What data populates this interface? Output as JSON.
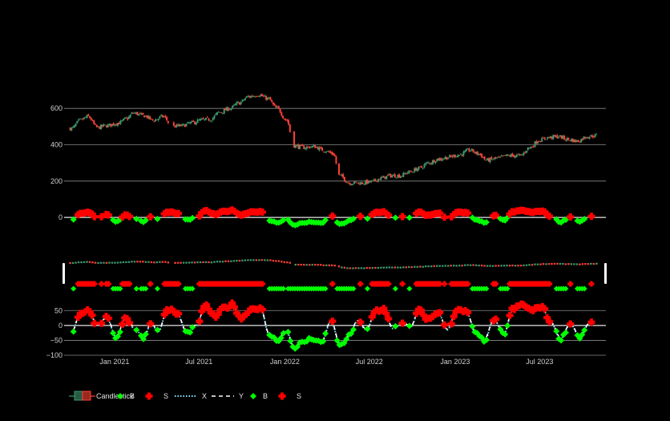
{
  "chart_data": {
    "type": "candlestick",
    "title": "",
    "colors": {
      "background": "#000000",
      "grid": "#8a8a8a",
      "up": "#3d9970",
      "down": "#ff4136",
      "buy_marker": "#00ff00",
      "sell_marker": "#ff0000",
      "x_line": "#7fe8ff",
      "y_line": "#ffffff",
      "tick_text": "#cfcfcf"
    },
    "x_axis": {
      "type": "date",
      "range": [
        "2020-09-15",
        "2023-11-20"
      ],
      "tick_labels": [
        {
          "date": "2021-01-01",
          "label": "Jan 2021"
        },
        {
          "date": "2021-07-01",
          "label": "Jul 2021"
        },
        {
          "date": "2022-01-01",
          "label": "Jan 2022"
        },
        {
          "date": "2022-07-01",
          "label": "Jul 2022"
        },
        {
          "date": "2023-01-01",
          "label": "Jan 2023"
        },
        {
          "date": "2023-07-01",
          "label": "Jul 2023"
        }
      ]
    },
    "price_panel": {
      "y_range": [
        -70,
        720
      ],
      "y_ticks": [
        0,
        200,
        400,
        600
      ],
      "price_series": [
        [
          "2020-10-01",
          490
        ],
        [
          "2020-10-20",
          535
        ],
        [
          "2020-11-05",
          555
        ],
        [
          "2020-11-25",
          495
        ],
        [
          "2020-12-15",
          505
        ],
        [
          "2021-01-10",
          520
        ],
        [
          "2021-01-28",
          545
        ],
        [
          "2021-02-10",
          575
        ],
        [
          "2021-03-05",
          560
        ],
        [
          "2021-03-25",
          535
        ],
        [
          "2021-04-15",
          555
        ],
        [
          "2021-05-05",
          500
        ],
        [
          "2021-05-25",
          505
        ],
        [
          "2021-06-15",
          520
        ],
        [
          "2021-07-05",
          535
        ],
        [
          "2021-07-25",
          540
        ],
        [
          "2021-08-15",
          580
        ],
        [
          "2021-09-05",
          600
        ],
        [
          "2021-09-25",
          630
        ],
        [
          "2021-10-15",
          665
        ],
        [
          "2021-11-05",
          675
        ],
        [
          "2021-11-25",
          655
        ],
        [
          "2021-12-15",
          600
        ],
        [
          "2022-01-05",
          535
        ],
        [
          "2022-01-20",
          395
        ],
        [
          "2022-02-10",
          385
        ],
        [
          "2022-03-05",
          390
        ],
        [
          "2022-03-25",
          370
        ],
        [
          "2022-04-15",
          350
        ],
        [
          "2022-04-28",
          230
        ],
        [
          "2022-05-20",
          190
        ],
        [
          "2022-06-10",
          190
        ],
        [
          "2022-07-05",
          195
        ],
        [
          "2022-07-25",
          215
        ],
        [
          "2022-08-15",
          230
        ],
        [
          "2022-09-05",
          230
        ],
        [
          "2022-09-25",
          250
        ],
        [
          "2022-10-15",
          270
        ],
        [
          "2022-11-05",
          300
        ],
        [
          "2022-11-25",
          320
        ],
        [
          "2022-12-15",
          330
        ],
        [
          "2023-01-10",
          345
        ],
        [
          "2023-02-01",
          370
        ],
        [
          "2023-02-20",
          350
        ],
        [
          "2023-03-10",
          315
        ],
        [
          "2023-04-01",
          325
        ],
        [
          "2023-04-25",
          340
        ],
        [
          "2023-05-20",
          340
        ],
        [
          "2023-06-10",
          385
        ],
        [
          "2023-06-30",
          425
        ],
        [
          "2023-07-20",
          440
        ],
        [
          "2023-08-10",
          445
        ],
        [
          "2023-08-30",
          430
        ],
        [
          "2023-09-20",
          420
        ],
        [
          "2023-10-10",
          445
        ],
        [
          "2023-10-30",
          450
        ]
      ],
      "oscillator_series": [
        [
          "2020-10-01",
          -25
        ],
        [
          "2020-10-20",
          40
        ],
        [
          "2020-11-05",
          55
        ],
        [
          "2020-11-25",
          0
        ],
        [
          "2020-12-15",
          25
        ],
        [
          "2021-01-05",
          -40
        ],
        [
          "2021-01-25",
          25
        ],
        [
          "2021-02-15",
          -15
        ],
        [
          "2021-03-05",
          -40
        ],
        [
          "2021-03-20",
          5
        ],
        [
          "2021-04-05",
          -20
        ],
        [
          "2021-04-25",
          55
        ],
        [
          "2021-05-15",
          40
        ],
        [
          "2021-06-05",
          -25
        ],
        [
          "2021-06-25",
          0
        ],
        [
          "2021-07-15",
          65
        ],
        [
          "2021-08-05",
          30
        ],
        [
          "2021-08-25",
          60
        ],
        [
          "2021-09-10",
          70
        ],
        [
          "2021-09-30",
          25
        ],
        [
          "2021-10-20",
          55
        ],
        [
          "2021-11-10",
          60
        ],
        [
          "2021-11-28",
          -30
        ],
        [
          "2021-12-15",
          -50
        ],
        [
          "2022-01-05",
          -20
        ],
        [
          "2022-01-20",
          -75
        ],
        [
          "2022-02-10",
          -55
        ],
        [
          "2022-03-01",
          -45
        ],
        [
          "2022-03-20",
          -60
        ],
        [
          "2022-04-10",
          15
        ],
        [
          "2022-04-30",
          -70
        ],
        [
          "2022-05-20",
          -35
        ],
        [
          "2022-06-05",
          15
        ],
        [
          "2022-06-25",
          -15
        ],
        [
          "2022-07-15",
          50
        ],
        [
          "2022-08-01",
          55
        ],
        [
          "2022-08-20",
          -10
        ],
        [
          "2022-09-10",
          10
        ],
        [
          "2022-09-28",
          -5
        ],
        [
          "2022-10-15",
          50
        ],
        [
          "2022-11-05",
          20
        ],
        [
          "2022-11-25",
          45
        ],
        [
          "2022-12-15",
          -15
        ],
        [
          "2023-01-05",
          50
        ],
        [
          "2023-01-25",
          45
        ],
        [
          "2023-02-15",
          -30
        ],
        [
          "2023-03-05",
          -50
        ],
        [
          "2023-03-25",
          20
        ],
        [
          "2023-04-15",
          -30
        ],
        [
          "2023-05-05",
          55
        ],
        [
          "2023-05-25",
          70
        ],
        [
          "2023-06-15",
          50
        ],
        [
          "2023-07-05",
          65
        ],
        [
          "2023-07-25",
          10
        ],
        [
          "2023-08-15",
          -45
        ],
        [
          "2023-09-05",
          5
        ],
        [
          "2023-09-25",
          -40
        ],
        [
          "2023-10-15",
          5
        ]
      ],
      "buy_threshold": -20,
      "sell_threshold": 20
    },
    "overview_panel": {
      "description_shown": false
    },
    "oscillator_panel": {
      "y_range": [
        -100,
        75
      ],
      "y_ticks": [
        {
          "value": 50,
          "label": "50"
        },
        {
          "value": 0,
          "label": "0"
        },
        {
          "value": -50,
          "label": "−50"
        },
        {
          "value": -100,
          "label": "−100"
        }
      ]
    },
    "legend": {
      "placement": "bottom-left",
      "entries": [
        {
          "name": "Candlestick",
          "symbol": "candle"
        },
        {
          "name": "B",
          "symbol": "diamond-green"
        },
        {
          "name": "S",
          "symbol": "cross-red"
        },
        {
          "name": "X",
          "symbol": "dot-line-cyan"
        },
        {
          "name": "Y",
          "symbol": "dash-line-white"
        },
        {
          "name": "B",
          "symbol": "diamond-green"
        },
        {
          "name": "S",
          "symbol": "cross-red"
        }
      ]
    }
  }
}
